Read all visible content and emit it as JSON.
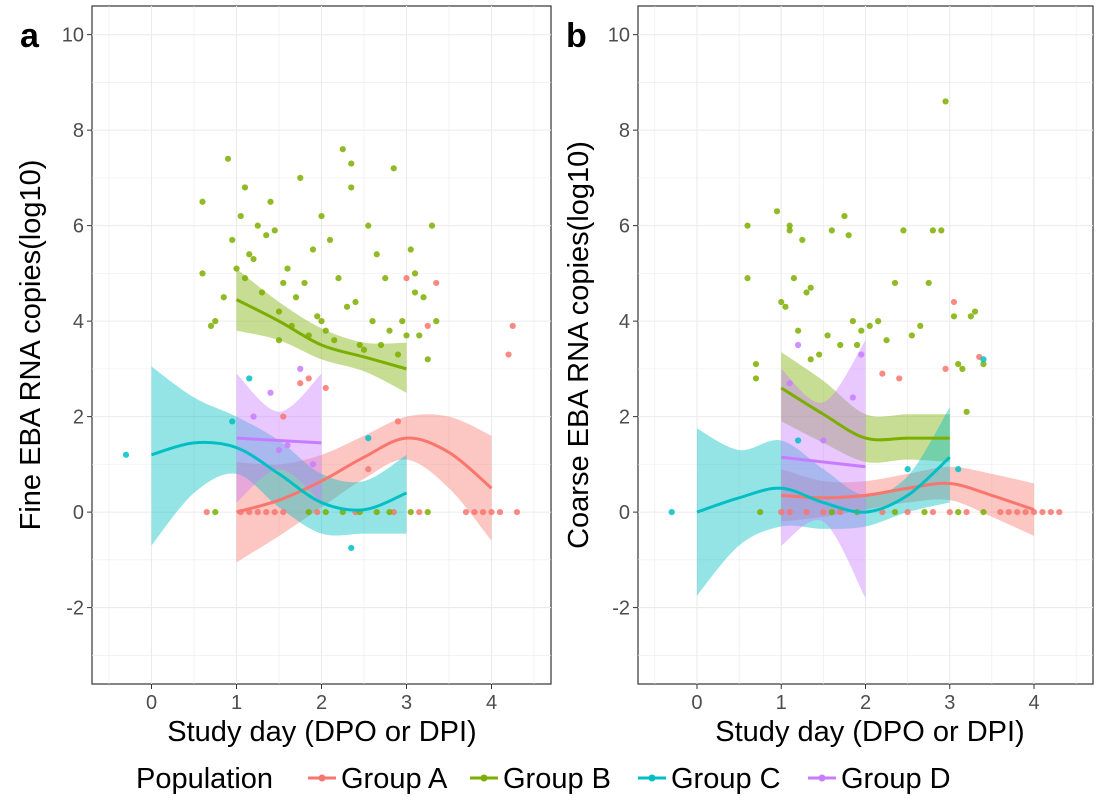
{
  "colors": {
    "Group A": "#F8766D",
    "Group B": "#7CAE00",
    "Group C": "#00BFC4",
    "Group D": "#C77CFF"
  },
  "legend": {
    "title": "Population",
    "entries": [
      "Group A",
      "Group B",
      "Group C",
      "Group D"
    ],
    "position": "bottom"
  },
  "chart_data": [
    {
      "type": "scatter",
      "panel_label": "a",
      "xlabel": "Study day (DPO or DPI)",
      "ylabel": "Fine EBA RNA copies(log10)",
      "xlim": [
        -0.7,
        4.7
      ],
      "ylim": [
        -3.6,
        10.6
      ],
      "xticks": [
        0,
        1,
        2,
        3,
        4
      ],
      "yticks": [
        -2,
        0,
        2,
        4,
        6,
        8,
        10
      ],
      "grid": true,
      "series": [
        {
          "name": "Group A",
          "points": [
            [
              0.65,
              0
            ],
            [
              1.05,
              0
            ],
            [
              1.15,
              0
            ],
            [
              1.25,
              0
            ],
            [
              1.35,
              0
            ],
            [
              1.45,
              0
            ],
            [
              1.55,
              0
            ],
            [
              1.95,
              0
            ],
            [
              2.4,
              0
            ],
            [
              2.85,
              0
            ],
            [
              3.15,
              0
            ],
            [
              3.7,
              0
            ],
            [
              3.8,
              0
            ],
            [
              3.9,
              0
            ],
            [
              4.0,
              0
            ],
            [
              4.1,
              0
            ],
            [
              4.3,
              0
            ],
            [
              3.0,
              4.9
            ],
            [
              3.35,
              4.8
            ],
            [
              3.25,
              3.9
            ],
            [
              4.2,
              3.3
            ],
            [
              4.25,
              3.9
            ],
            [
              1.85,
              2.8
            ],
            [
              1.75,
              2.7
            ],
            [
              1.55,
              2.0
            ],
            [
              2.05,
              2.6
            ],
            [
              2.55,
              0.9
            ],
            [
              2.9,
              1.9
            ]
          ],
          "smooth": {
            "x": [
              1.0,
              1.5,
              2.0,
              2.5,
              3.0,
              3.5,
              4.0
            ],
            "y": [
              0.0,
              0.25,
              0.65,
              1.15,
              1.55,
              1.25,
              0.5
            ],
            "lower": [
              -1.05,
              -0.5,
              0.1,
              0.7,
              1.1,
              0.5,
              -0.6
            ],
            "upper": [
              1.05,
              1.0,
              1.2,
              1.6,
              2.0,
              2.0,
              1.6
            ]
          }
        },
        {
          "name": "Group B",
          "points": [
            [
              0.6,
              6.5
            ],
            [
              0.6,
              5.0
            ],
            [
              0.7,
              3.9
            ],
            [
              0.75,
              4.0
            ],
            [
              0.9,
              7.4
            ],
            [
              0.95,
              5.7
            ],
            [
              1.0,
              5.1
            ],
            [
              1.05,
              6.2
            ],
            [
              1.1,
              6.8
            ],
            [
              1.15,
              5.4
            ],
            [
              1.2,
              5.3
            ],
            [
              1.25,
              6.0
            ],
            [
              1.3,
              4.6
            ],
            [
              1.35,
              5.8
            ],
            [
              1.4,
              6.5
            ],
            [
              1.45,
              5.9
            ],
            [
              1.5,
              4.2
            ],
            [
              1.55,
              4.8
            ],
            [
              1.6,
              5.1
            ],
            [
              1.65,
              3.9
            ],
            [
              1.7,
              4.5
            ],
            [
              1.75,
              7.0
            ],
            [
              1.8,
              4.8
            ],
            [
              1.85,
              3.7
            ],
            [
              1.9,
              5.5
            ],
            [
              1.95,
              4.1
            ],
            [
              2.0,
              4.0
            ],
            [
              2.05,
              3.8
            ],
            [
              2.1,
              5.7
            ],
            [
              2.15,
              3.6
            ],
            [
              2.2,
              4.9
            ],
            [
              2.25,
              7.6
            ],
            [
              2.3,
              4.3
            ],
            [
              2.35,
              7.3
            ],
            [
              2.4,
              4.4
            ],
            [
              2.45,
              3.5
            ],
            [
              2.5,
              3.4
            ],
            [
              2.55,
              6.0
            ],
            [
              2.6,
              4.0
            ],
            [
              2.65,
              5.4
            ],
            [
              2.7,
              3.5
            ],
            [
              2.75,
              4.9
            ],
            [
              2.8,
              3.8
            ],
            [
              2.85,
              7.2
            ],
            [
              2.9,
              3.3
            ],
            [
              2.95,
              4.0
            ],
            [
              3.0,
              3.7
            ],
            [
              3.05,
              5.5
            ],
            [
              3.1,
              4.6
            ],
            [
              3.15,
              3.7
            ],
            [
              3.2,
              4.5
            ],
            [
              3.25,
              3.2
            ],
            [
              3.3,
              6.0
            ],
            [
              3.35,
              4.0
            ],
            [
              3.1,
              5.0
            ],
            [
              2.35,
              6.8
            ],
            [
              2.0,
              6.2
            ],
            [
              0.85,
              4.5
            ],
            [
              1.1,
              4.9
            ],
            [
              1.5,
              3.6
            ],
            [
              0.75,
              0
            ],
            [
              1.85,
              0
            ],
            [
              2.05,
              0
            ],
            [
              2.25,
              0
            ],
            [
              2.45,
              0
            ],
            [
              2.65,
              0
            ],
            [
              2.8,
              0
            ],
            [
              3.05,
              0
            ],
            [
              3.25,
              0
            ]
          ],
          "smooth": {
            "x": [
              1.0,
              1.5,
              2.0,
              2.5,
              3.0
            ],
            "y": [
              4.45,
              4.0,
              3.5,
              3.25,
              3.0
            ],
            "lower": [
              3.8,
              3.6,
              3.2,
              2.95,
              2.5
            ],
            "upper": [
              5.1,
              4.4,
              3.85,
              3.55,
              3.55
            ]
          }
        },
        {
          "name": "Group C",
          "points": [
            [
              -0.3,
              1.2
            ],
            [
              1.15,
              2.8
            ],
            [
              2.35,
              -0.75
            ],
            [
              0.95,
              1.9
            ],
            [
              2.55,
              1.55
            ]
          ],
          "smooth": {
            "x": [
              0.0,
              0.5,
              1.0,
              1.5,
              2.0,
              2.5,
              3.0
            ],
            "y": [
              1.2,
              1.45,
              1.35,
              0.8,
              0.2,
              0.05,
              0.4
            ],
            "lower": [
              -0.7,
              0.4,
              0.8,
              0.1,
              -0.45,
              -0.45,
              -0.45
            ],
            "upper": [
              3.05,
              2.4,
              2.0,
              1.5,
              0.8,
              0.65,
              1.2
            ]
          }
        },
        {
          "name": "Group D",
          "points": [
            [
              1.2,
              2.0
            ],
            [
              1.4,
              2.5
            ],
            [
              1.5,
              1.3
            ],
            [
              1.6,
              1.4
            ],
            [
              1.75,
              3.0
            ],
            [
              1.9,
              1.0
            ]
          ],
          "smooth": {
            "x": [
              1.0,
              1.5,
              2.0
            ],
            "y": [
              1.55,
              1.5,
              1.45
            ],
            "lower": [
              0.2,
              0.9,
              0.2
            ],
            "upper": [
              2.9,
              2.1,
              2.9
            ]
          }
        }
      ]
    },
    {
      "type": "scatter",
      "panel_label": "b",
      "xlabel": "Study day (DPO or DPI)",
      "ylabel": "Coarse EBA RNA copies(log10)",
      "xlim": [
        -0.7,
        4.7
      ],
      "ylim": [
        -3.6,
        10.6
      ],
      "xticks": [
        0,
        1,
        2,
        3,
        4
      ],
      "yticks": [
        -2,
        0,
        2,
        4,
        6,
        8,
        10
      ],
      "grid": true,
      "series": [
        {
          "name": "Group A",
          "points": [
            [
              1.0,
              0
            ],
            [
              1.1,
              0
            ],
            [
              1.3,
              0
            ],
            [
              1.5,
              0
            ],
            [
              1.7,
              0
            ],
            [
              2.2,
              0
            ],
            [
              2.5,
              0
            ],
            [
              2.8,
              0
            ],
            [
              3.0,
              0
            ],
            [
              3.2,
              0
            ],
            [
              3.6,
              0
            ],
            [
              3.7,
              0
            ],
            [
              3.8,
              0
            ],
            [
              3.9,
              0
            ],
            [
              4.0,
              0
            ],
            [
              4.1,
              0
            ],
            [
              4.2,
              0
            ],
            [
              4.3,
              0
            ],
            [
              2.95,
              3.0
            ],
            [
              3.05,
              4.4
            ],
            [
              2.2,
              2.9
            ],
            [
              2.4,
              2.8
            ],
            [
              3.35,
              3.25
            ]
          ],
          "smooth": {
            "x": [
              1.0,
              1.5,
              2.0,
              2.5,
              3.0,
              3.5,
              4.0
            ],
            "y": [
              0.35,
              0.3,
              0.35,
              0.5,
              0.6,
              0.35,
              0.05
            ],
            "lower": [
              -0.2,
              -0.1,
              0.05,
              0.2,
              0.25,
              -0.1,
              -0.5
            ],
            "upper": [
              0.9,
              0.65,
              0.65,
              0.8,
              0.95,
              0.8,
              0.6
            ]
          }
        },
        {
          "name": "Group B",
          "points": [
            [
              0.6,
              6.0
            ],
            [
              0.6,
              4.9
            ],
            [
              0.7,
              3.1
            ],
            [
              0.7,
              2.8
            ],
            [
              0.95,
              6.3
            ],
            [
              1.0,
              4.4
            ],
            [
              1.05,
              4.3
            ],
            [
              1.1,
              6.0
            ],
            [
              1.1,
              5.9
            ],
            [
              1.15,
              4.9
            ],
            [
              1.2,
              3.8
            ],
            [
              1.25,
              5.7
            ],
            [
              1.3,
              4.6
            ],
            [
              1.35,
              4.7
            ],
            [
              1.45,
              3.3
            ],
            [
              1.55,
              3.7
            ],
            [
              1.6,
              5.9
            ],
            [
              1.7,
              3.5
            ],
            [
              1.75,
              6.2
            ],
            [
              1.8,
              5.8
            ],
            [
              1.85,
              4.0
            ],
            [
              1.9,
              3.5
            ],
            [
              1.95,
              3.8
            ],
            [
              2.05,
              3.9
            ],
            [
              2.15,
              4.0
            ],
            [
              2.25,
              3.6
            ],
            [
              2.35,
              4.8
            ],
            [
              2.45,
              5.9
            ],
            [
              2.55,
              3.7
            ],
            [
              2.65,
              3.9
            ],
            [
              2.75,
              4.8
            ],
            [
              2.8,
              5.9
            ],
            [
              2.9,
              5.9
            ],
            [
              2.95,
              8.6
            ],
            [
              3.05,
              4.1
            ],
            [
              3.1,
              3.1
            ],
            [
              3.15,
              3.0
            ],
            [
              3.3,
              4.2
            ],
            [
              3.4,
              3.1
            ],
            [
              3.2,
              2.1
            ],
            [
              3.25,
              4.1
            ],
            [
              1.35,
              3.2
            ],
            [
              0.75,
              0
            ],
            [
              1.6,
              0
            ],
            [
              1.9,
              0
            ],
            [
              2.35,
              0
            ],
            [
              2.7,
              0
            ],
            [
              3.1,
              0
            ],
            [
              3.4,
              0
            ]
          ],
          "smooth": {
            "x": [
              1.0,
              1.5,
              2.0,
              2.5,
              3.0
            ],
            "y": [
              2.6,
              2.05,
              1.55,
              1.55,
              1.55
            ],
            "lower": [
              1.9,
              1.45,
              1.05,
              1.1,
              1.05
            ],
            "upper": [
              3.35,
              2.75,
              2.05,
              2.05,
              2.05
            ]
          }
        },
        {
          "name": "Group C",
          "points": [
            [
              -0.3,
              0
            ],
            [
              1.2,
              1.5
            ],
            [
              3.4,
              3.2
            ],
            [
              3.1,
              0.9
            ],
            [
              2.5,
              0.9
            ]
          ],
          "smooth": {
            "x": [
              0.0,
              0.5,
              1.0,
              1.5,
              2.0,
              2.5,
              3.0
            ],
            "y": [
              0.0,
              0.3,
              0.5,
              0.2,
              0.0,
              0.35,
              1.15
            ],
            "lower": [
              -1.75,
              -0.7,
              -0.3,
              -0.35,
              -0.3,
              0.0,
              0.2
            ],
            "upper": [
              1.75,
              1.3,
              1.5,
              0.9,
              0.35,
              0.75,
              2.2
            ]
          }
        },
        {
          "name": "Group D",
          "points": [
            [
              1.1,
              2.7
            ],
            [
              1.2,
              3.5
            ],
            [
              1.5,
              1.5
            ],
            [
              1.85,
              2.4
            ],
            [
              1.95,
              3.3
            ]
          ],
          "smooth": {
            "x": [
              1.0,
              1.5,
              2.0
            ],
            "y": [
              1.15,
              1.05,
              0.95
            ],
            "lower": [
              -0.7,
              -0.2,
              -1.8
            ],
            "upper": [
              3.0,
              2.3,
              3.6
            ]
          }
        }
      ]
    }
  ]
}
